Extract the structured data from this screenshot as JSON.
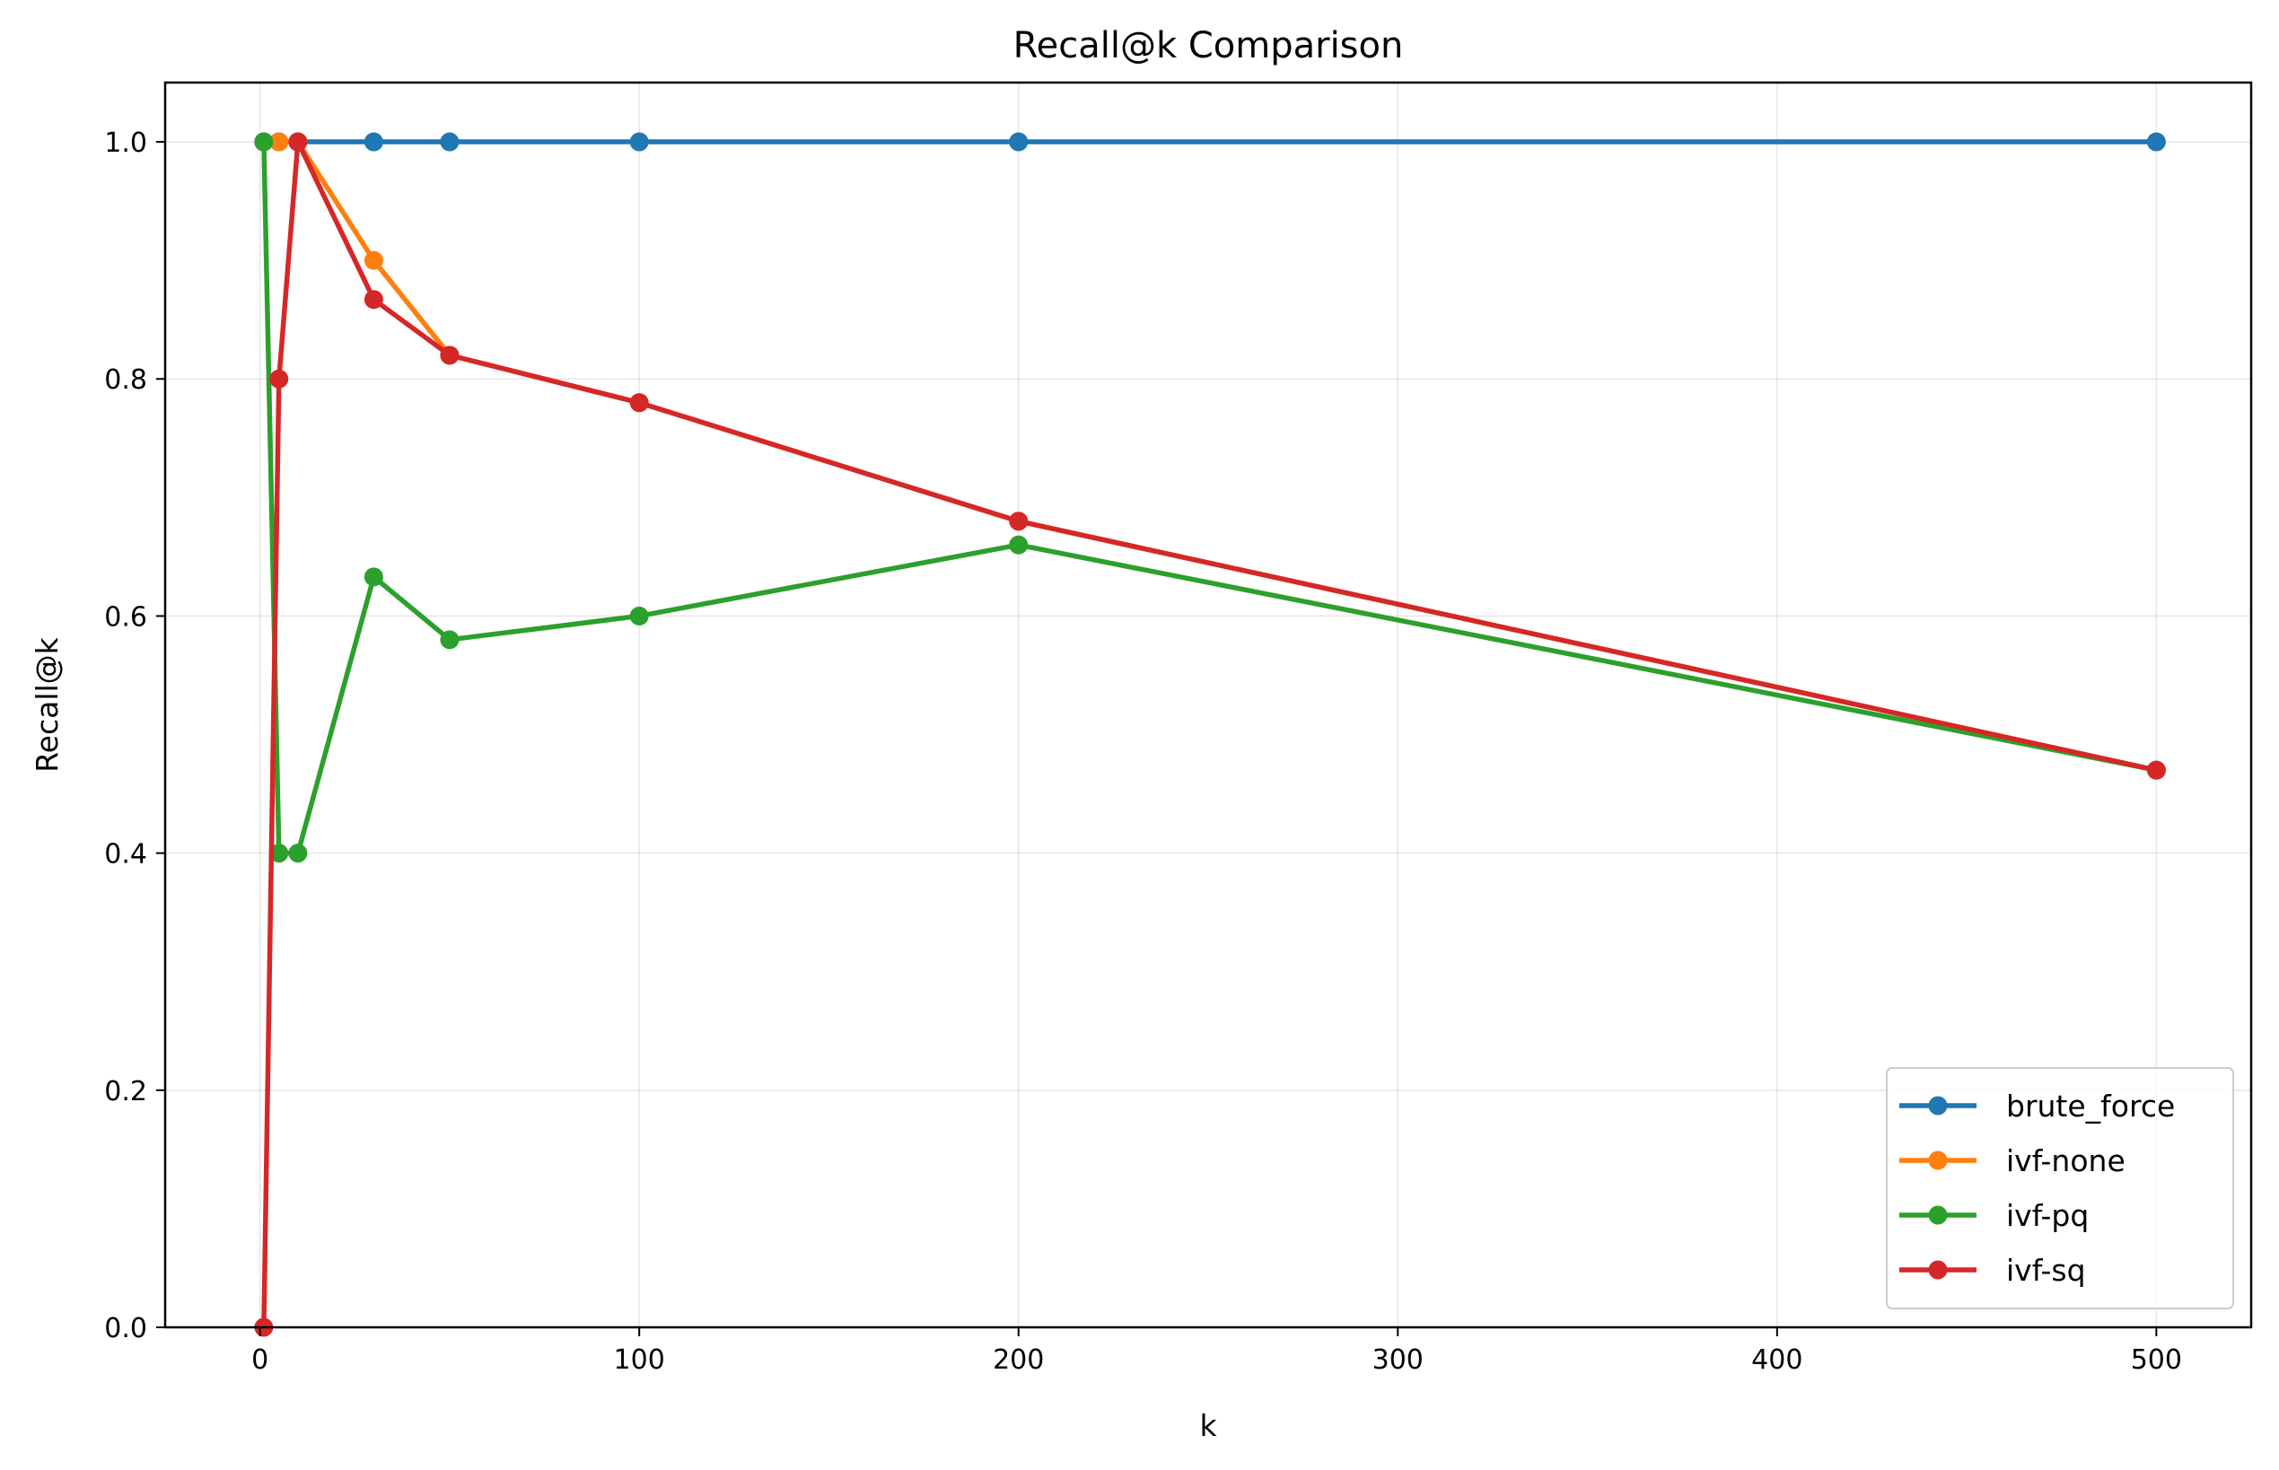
{
  "chart_data": {
    "type": "line",
    "title": "Recall@k Comparison",
    "xlabel": "k",
    "ylabel": "Recall@k",
    "xlim": [
      -25,
      525
    ],
    "ylim": [
      0.0,
      1.05
    ],
    "xticks": [
      0,
      100,
      200,
      300,
      400,
      500
    ],
    "xtick_labels": [
      "0",
      "100",
      "200",
      "300",
      "400",
      "500"
    ],
    "yticks": [
      0.0,
      0.2,
      0.4,
      0.6,
      0.8,
      1.0
    ],
    "ytick_labels": [
      "0.0",
      "0.2",
      "0.4",
      "0.6",
      "0.8",
      "1.0"
    ],
    "grid": true,
    "legend_position": "lower-right",
    "x": [
      1,
      5,
      10,
      30,
      50,
      100,
      200,
      500
    ],
    "series": [
      {
        "name": "brute_force",
        "color": "#1f77b4",
        "values": [
          1.0,
          1.0,
          1.0,
          1.0,
          1.0,
          1.0,
          1.0,
          1.0
        ]
      },
      {
        "name": "ivf-none",
        "color": "#ff7f0e",
        "values": [
          1.0,
          1.0,
          1.0,
          0.9,
          0.82,
          0.78,
          0.68,
          0.47
        ]
      },
      {
        "name": "ivf-pq",
        "color": "#2ca02c",
        "values": [
          1.0,
          0.4,
          0.4,
          0.633,
          0.58,
          0.6,
          0.66,
          0.47
        ]
      },
      {
        "name": "ivf-sq",
        "color": "#d62728",
        "values": [
          0.0,
          0.8,
          1.0,
          0.867,
          0.82,
          0.78,
          0.68,
          0.47
        ]
      }
    ]
  }
}
